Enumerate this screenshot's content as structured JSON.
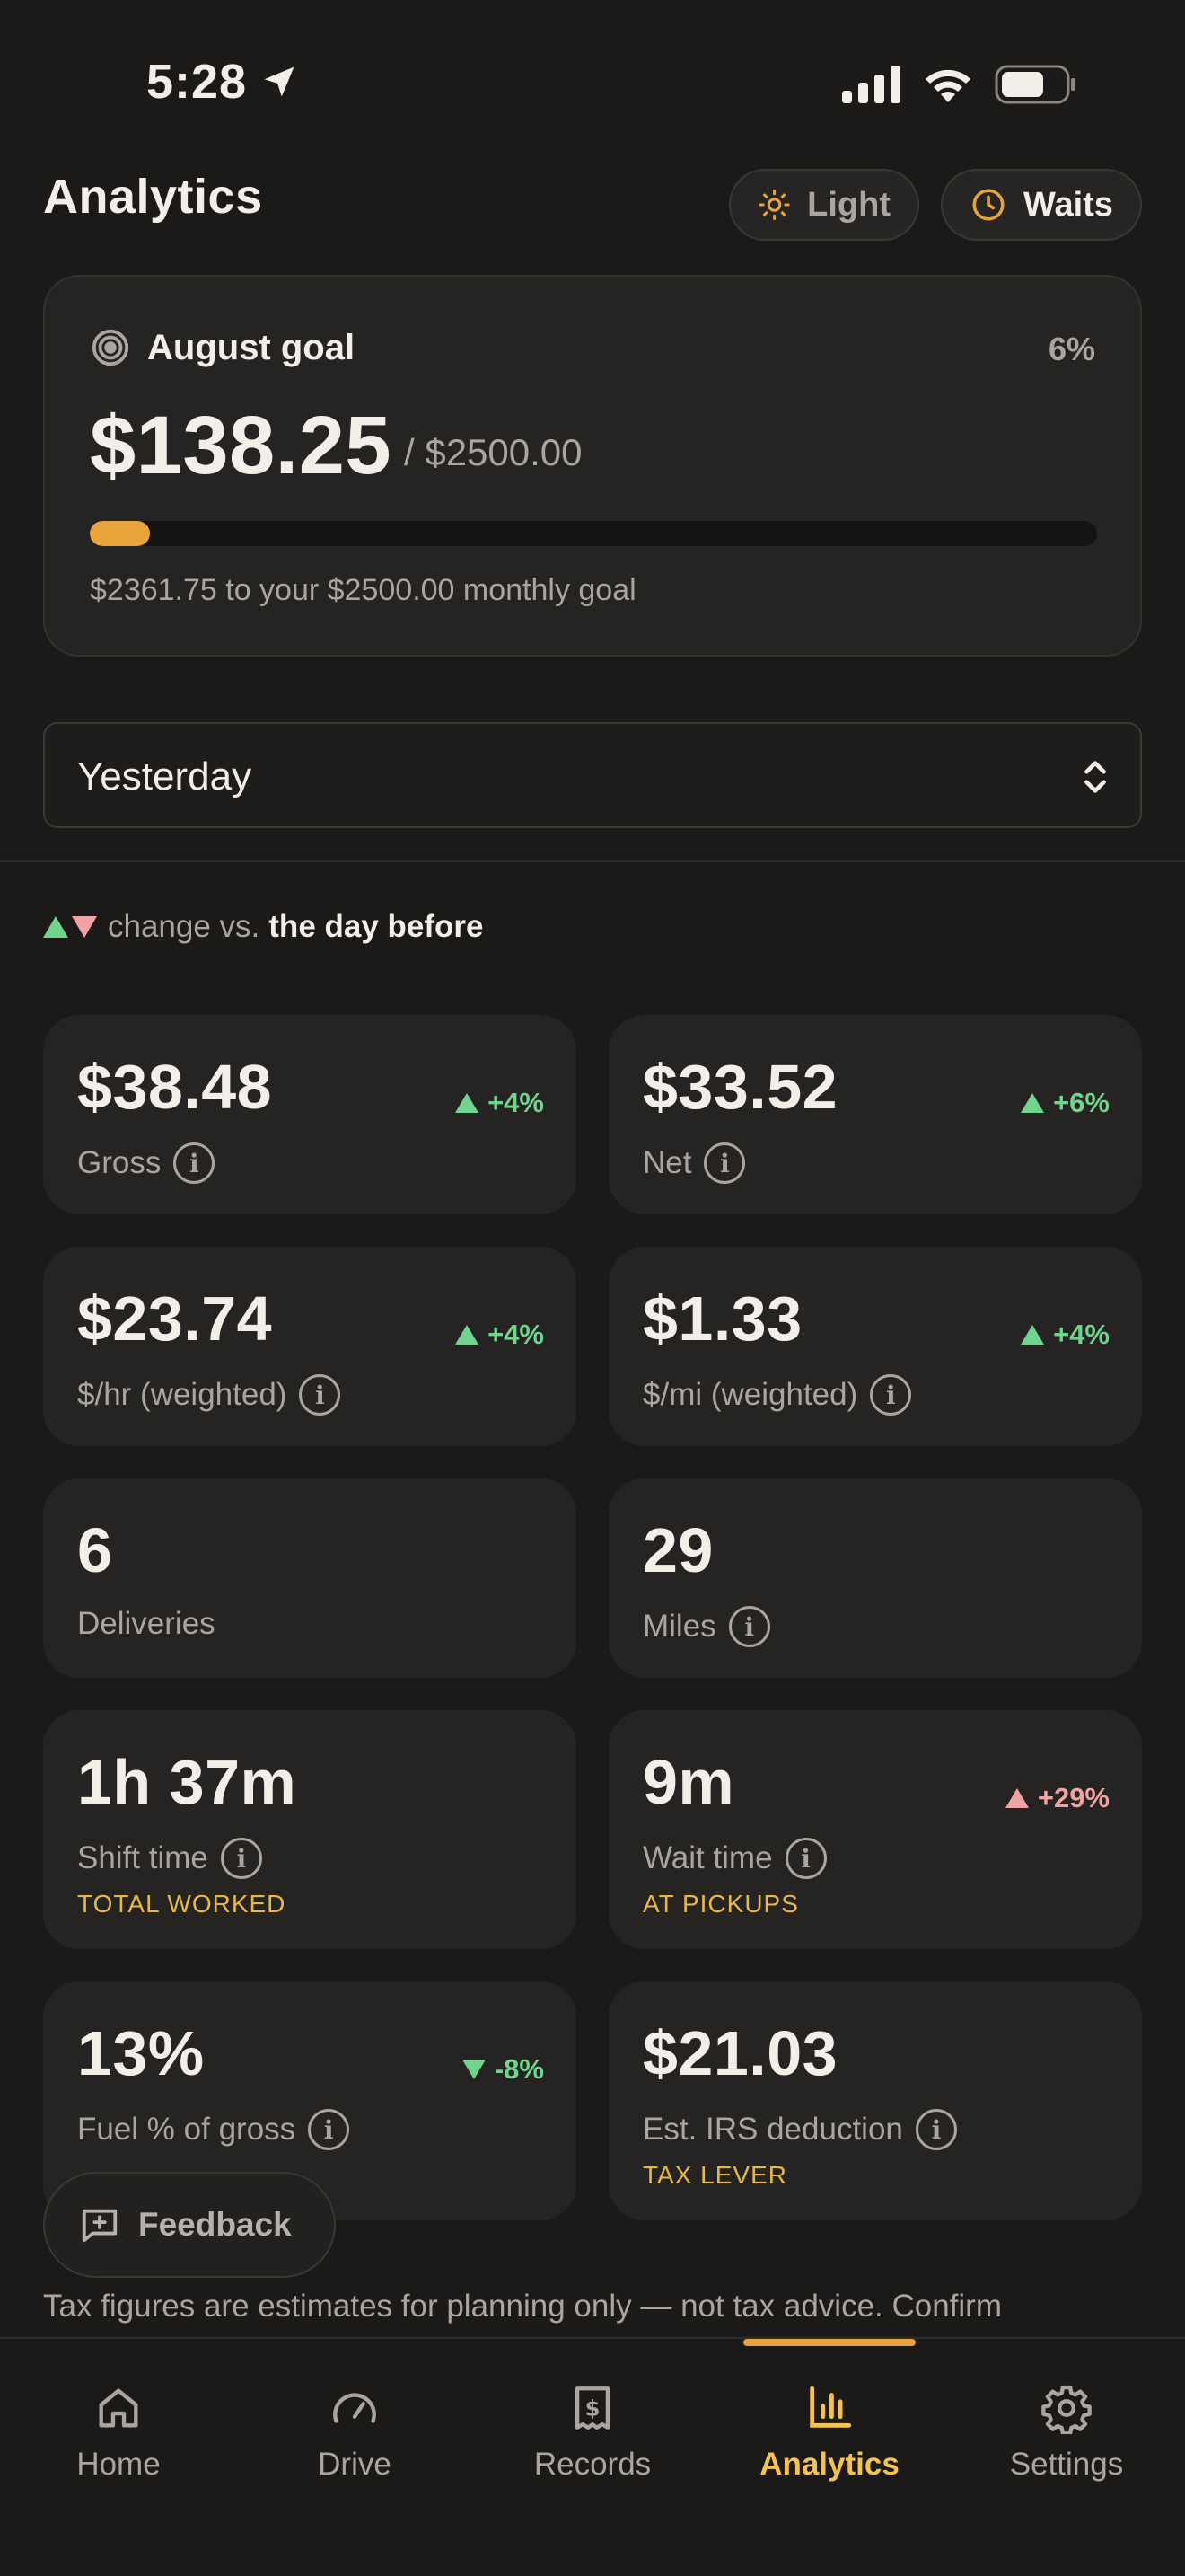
{
  "status_bar": {
    "time": "5:28"
  },
  "header": {
    "title": "Analytics",
    "light_label": "Light",
    "waits_label": "Waits"
  },
  "goal": {
    "title": "August goal",
    "percent": "6%",
    "progress_fraction": 0.06,
    "amount": "$138.25",
    "total": "/ $2500.00",
    "note": "$2361.75 to your $2500.00 monthly goal"
  },
  "period": {
    "selected": "Yesterday"
  },
  "legend": {
    "prefix": "change vs.",
    "comparison": "the day before"
  },
  "stats": [
    {
      "value": "$38.48",
      "label": "Gross",
      "delta": "+4%"
    },
    {
      "value": "$33.52",
      "label": "Net",
      "delta": "+6%"
    },
    {
      "value": "$23.74",
      "label": "$/hr (weighted)",
      "delta": "+4%"
    },
    {
      "value": "$1.33",
      "label": "$/mi (weighted)",
      "delta": "+4%"
    },
    {
      "value": "6",
      "label": "Deliveries"
    },
    {
      "value": "29",
      "label": "Miles"
    },
    {
      "value": "1h 37m",
      "label": "Shift time",
      "sub": "TOTAL WORKED"
    },
    {
      "value": "9m",
      "label": "Wait time",
      "sub": "AT PICKUPS",
      "delta": "+29%"
    },
    {
      "value": "13%",
      "label": "Fuel % of gross",
      "delta": "-8%"
    },
    {
      "value": "$21.03",
      "label": "Est. IRS deduction",
      "sub": "TAX LEVER"
    }
  ],
  "feedback_label": "Feedback",
  "disclaimer": "Tax figures are estimates for planning only — not tax advice. Confirm",
  "nav": {
    "home": "Home",
    "drive": "Drive",
    "records": "Records",
    "analytics": "Analytics",
    "settings": "Settings"
  },
  "colors": {
    "accent": "#e6a43a",
    "positive": "#6fd58d",
    "negative": "#f1a3a3",
    "highlight": "#f4c24e"
  }
}
